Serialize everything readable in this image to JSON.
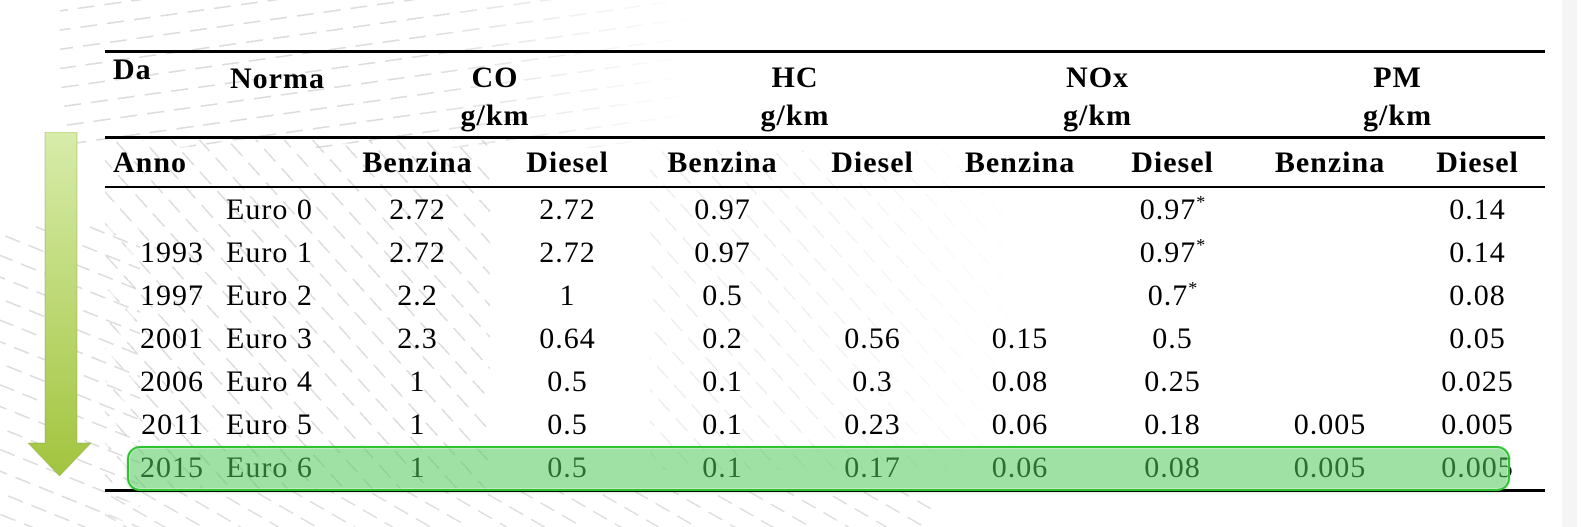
{
  "table": {
    "left_headers": {
      "da": "Da",
      "anno": "Anno",
      "norma": "Norma"
    },
    "groups": [
      {
        "label": "CO",
        "unit": "g/km"
      },
      {
        "label": "HC",
        "unit": "g/km"
      },
      {
        "label": "NOx",
        "unit": "g/km"
      },
      {
        "label": "PM",
        "unit": "g/km"
      }
    ],
    "fuel_headers": [
      "Benzina",
      "Diesel",
      "Benzina",
      "Diesel",
      "Benzina",
      "Diesel",
      "Benzina",
      "Diesel"
    ],
    "rows": [
      {
        "year": "",
        "norma": "Euro 0",
        "values": [
          "2.72",
          "2.72",
          "0.97",
          "",
          "",
          "0.97*",
          "",
          "0.14"
        ]
      },
      {
        "year": "1993",
        "norma": "Euro 1",
        "values": [
          "2.72",
          "2.72",
          "0.97",
          "",
          "",
          "0.97*",
          "",
          "0.14"
        ]
      },
      {
        "year": "1997",
        "norma": "Euro 2",
        "values": [
          "2.2",
          "1",
          "0.5",
          "",
          "",
          "0.7*",
          "",
          "0.08"
        ]
      },
      {
        "year": "2001",
        "norma": "Euro 3",
        "values": [
          "2.3",
          "0.64",
          "0.2",
          "0.56",
          "0.15",
          "0.5",
          "",
          "0.05"
        ]
      },
      {
        "year": "2006",
        "norma": "Euro 4",
        "values": [
          "1",
          "0.5",
          "0.1",
          "0.3",
          "0.08",
          "0.25",
          "",
          "0.025"
        ]
      },
      {
        "year": "2011",
        "norma": "Euro 5",
        "values": [
          "1",
          "0.5",
          "0.1",
          "0.23",
          "0.06",
          "0.18",
          "0.005",
          "0.005"
        ]
      },
      {
        "year": "2015",
        "norma": "Euro 6",
        "values": [
          "1",
          "0.5",
          "0.1",
          "0.17",
          "0.06",
          "0.08",
          "0.005",
          "0.005"
        ],
        "highlighted": true
      }
    ],
    "footnote_marker": "*"
  },
  "decor": {
    "highlight": {
      "fill": "#50c85a",
      "fill_opacity": 0.55,
      "border": "#2fc42f"
    },
    "arrow": {
      "direction": "down",
      "gradient_top": "#d7ecaa",
      "gradient_bottom": "#a2c43e"
    },
    "line_color": "#000000",
    "texture_color": "#c6c6c6"
  }
}
